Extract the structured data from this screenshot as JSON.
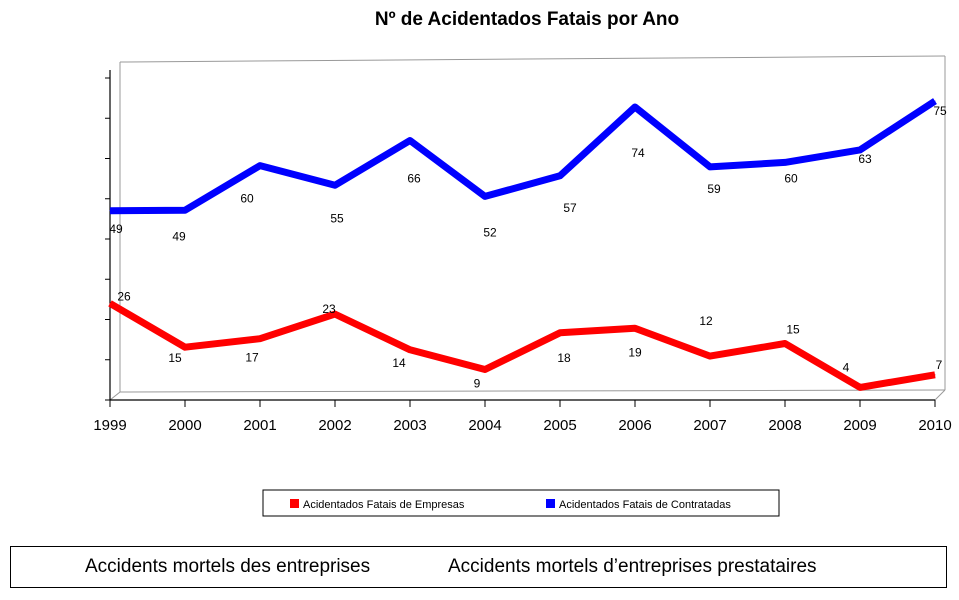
{
  "chart_data": {
    "type": "line",
    "title": "Nº de Acidentados Fatais por Ano",
    "xlabel": "",
    "ylabel": "",
    "ylim": [
      0,
      80
    ],
    "grid": false,
    "legend_position": "bottom",
    "categories": [
      "1999",
      "2000",
      "2001",
      "2002",
      "2003",
      "2004",
      "2005",
      "2006",
      "2007",
      "2008",
      "2009",
      "2010"
    ],
    "series": [
      {
        "name": "Acidentados Fatais de Empresas",
        "color": "#ff0000",
        "values": [
          26,
          15,
          17,
          23,
          14,
          9,
          18,
          19,
          12,
          15,
          4,
          7
        ]
      },
      {
        "name": "Acidentados Fatais de Contratadas",
        "color": "#0000ff",
        "values": [
          49,
          49,
          60,
          55,
          66,
          52,
          57,
          74,
          59,
          60,
          63,
          75
        ]
      }
    ]
  },
  "captions": {
    "left": "Accidents mortels des entreprises",
    "right": "Accidents mortels d’entreprises prestataires"
  }
}
